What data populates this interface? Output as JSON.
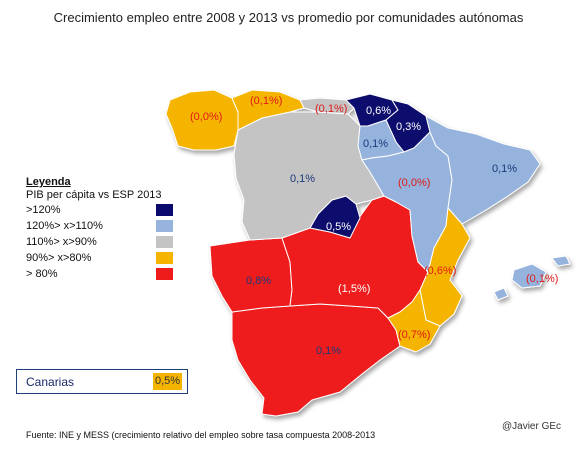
{
  "title": "Crecimiento empleo entre 2008 y 2013 vs promedio por comunidades autónomas",
  "legend": {
    "title": "Leyenda",
    "subtitle": "PIB per cápita vs ESP 2013",
    "items": [
      {
        "label": ">120%",
        "color": "#0a0a6e"
      },
      {
        "label": "120%> x>110%",
        "color": "#95b3dc"
      },
      {
        "label": "110%> x>90%",
        "color": "#c4c4c4"
      },
      {
        "label": "90%> x>80%",
        "color": "#f5b400"
      },
      {
        "label": "> 80%",
        "color": "#ee1b1b"
      }
    ]
  },
  "regions": [
    {
      "name": "Galicia",
      "value": "(0,0%)",
      "color": "#f5b400"
    },
    {
      "name": "Asturias",
      "value": "(0,1%)",
      "color": "#f5b400"
    },
    {
      "name": "Cantabria",
      "value": "(0,1%)",
      "color": "#c4c4c4"
    },
    {
      "name": "Pais Vasco",
      "value": "0,6%",
      "color": "#0a0a6e"
    },
    {
      "name": "Navarra",
      "value": "0,3%",
      "color": "#0a0a6e"
    },
    {
      "name": "La Rioja",
      "value": "0,1%",
      "color": "#95b3dc"
    },
    {
      "name": "Castilla y Leon",
      "value": "0,1%",
      "color": "#c4c4c4"
    },
    {
      "name": "Aragon",
      "value": "(0,0%)",
      "color": "#95b3dc"
    },
    {
      "name": "Cataluna",
      "value": "0,1%",
      "color": "#95b3dc"
    },
    {
      "name": "Madrid",
      "value": "0,5%",
      "color": "#0a0a6e"
    },
    {
      "name": "Extremadura",
      "value": "0,8%",
      "color": "#ee1b1b"
    },
    {
      "name": "Castilla-La Mancha",
      "value": "(1,5%)",
      "color": "#ee1b1b"
    },
    {
      "name": "Comunidad Valenciana",
      "value": "(0,6%)",
      "color": "#f5b400"
    },
    {
      "name": "Baleares",
      "value": "(0,1%)",
      "color": "#95b3dc"
    },
    {
      "name": "Murcia",
      "value": "(0,7%)",
      "color": "#f5b400"
    },
    {
      "name": "Andalucia",
      "value": "0,1%",
      "color": "#ee1b1b"
    }
  ],
  "canarias": {
    "label": "Canarias",
    "value": "0,5%",
    "color": "#f5b400"
  },
  "source": "Fuente: INE y MESS (crecimiento relativo del empleo sobre tasa compuesta 2008-2013",
  "credit": "@Javier GEc"
}
